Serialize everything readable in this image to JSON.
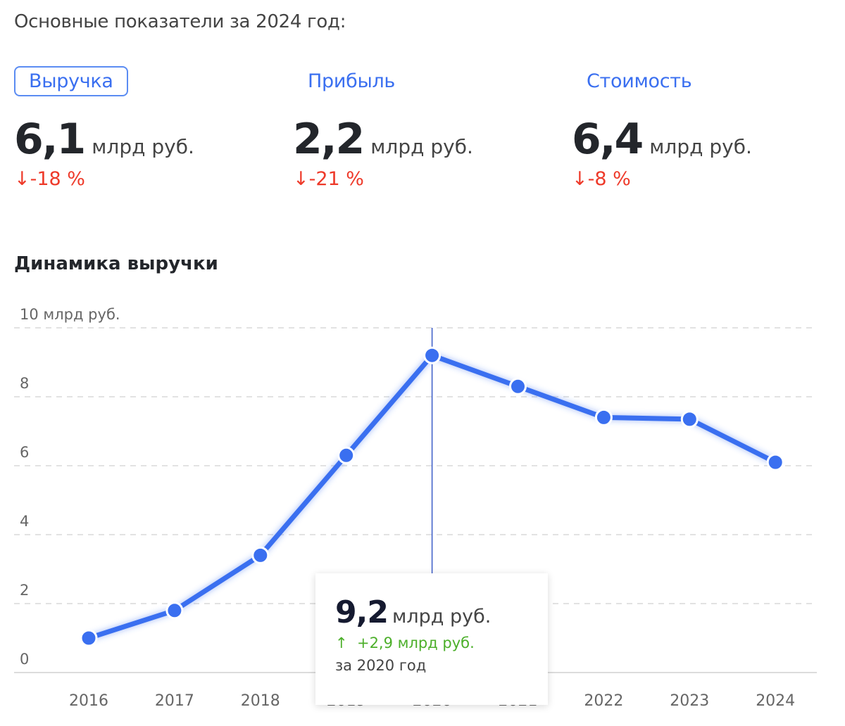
{
  "header": {
    "title": "Основные показатели за 2024 год:"
  },
  "metrics": [
    {
      "tab": "Выручка",
      "value": "6,1",
      "unit": "млрд руб.",
      "change_arrow": "↓",
      "change": "-18 %",
      "active": true
    },
    {
      "tab": "Прибыль",
      "value": "2,2",
      "unit": "млрд руб.",
      "change_arrow": "↓",
      "change": "-21 %",
      "active": false
    },
    {
      "tab": "Стоимость",
      "value": "6,4",
      "unit": "млрд руб.",
      "change_arrow": "↓",
      "change": "-8 %",
      "active": false
    }
  ],
  "chart_data": {
    "type": "line",
    "title": "Динамика выручки",
    "ylabel": "10 млрд руб.",
    "categories": [
      "2016",
      "2017",
      "2018",
      "2019",
      "2020",
      "2021",
      "2022",
      "2023",
      "2024"
    ],
    "values": [
      1.0,
      1.8,
      3.4,
      6.3,
      9.2,
      8.3,
      7.4,
      7.35,
      6.1
    ],
    "yticks": [
      "0",
      "2",
      "4",
      "6",
      "8"
    ],
    "ylim": [
      0,
      10
    ],
    "grid": true,
    "color": "#3a6ff0",
    "tooltip": {
      "index": 4,
      "value": "9,2",
      "unit": "млрд руб.",
      "arrow": "↑",
      "change": "+2,9 млрд руб.",
      "period": "за 2020 год"
    }
  }
}
